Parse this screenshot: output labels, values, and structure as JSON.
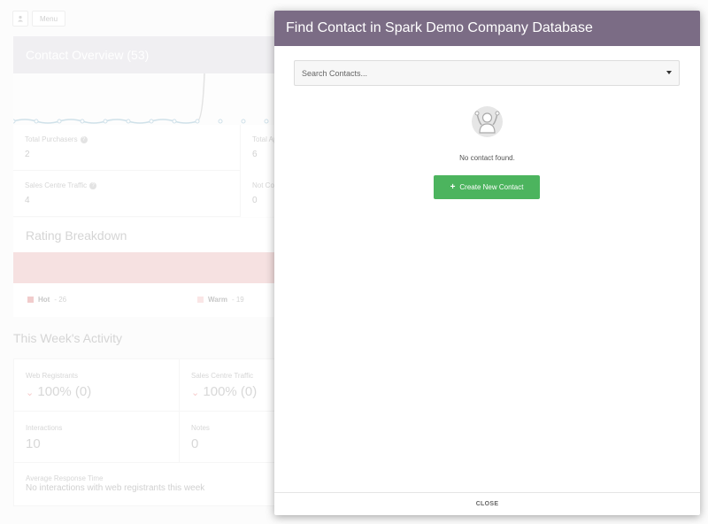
{
  "topbar": {
    "menu_label": "Menu",
    "user_icon": "user-icon"
  },
  "overview": {
    "title": "Contact Overview (53)"
  },
  "stats": [
    {
      "label": "Total Purchasers",
      "value": "2"
    },
    {
      "label": "Sales Centre Traffic",
      "value": "4"
    }
  ],
  "stats_right": [
    {
      "label": "Total Ap",
      "value": "6"
    },
    {
      "label": "Not Co",
      "value": "0"
    }
  ],
  "rating": {
    "title": "Rating Breakdown",
    "hot_label": "Hot",
    "hot_count": "- 26",
    "warm_label": "Warm",
    "warm_count": "- 19",
    "hot_color": "#e6a2a2",
    "warm_color": "#f6d2d2"
  },
  "activity": {
    "title": "This Week's Activity",
    "web_registrants_label": "Web Registrants",
    "web_registrants_value": "100% (0)",
    "sales_centre_label": "Sales Centre Traffic",
    "sales_centre_value": "100% (0)",
    "interactions_label": "Interactions",
    "interactions_value": "10",
    "notes_label": "Notes",
    "notes_value": "0",
    "response_label": "Average Response Time",
    "response_text": "No interactions with web registrants this week"
  },
  "modal": {
    "title": "Find Contact in Spark Demo Company Database",
    "search_placeholder": "Search Contacts...",
    "empty_message": "No contact found.",
    "create_button": "Create New Contact",
    "close_button": "CLOSE",
    "header_color": "#7b6c85",
    "button_color": "#4cb45e"
  }
}
